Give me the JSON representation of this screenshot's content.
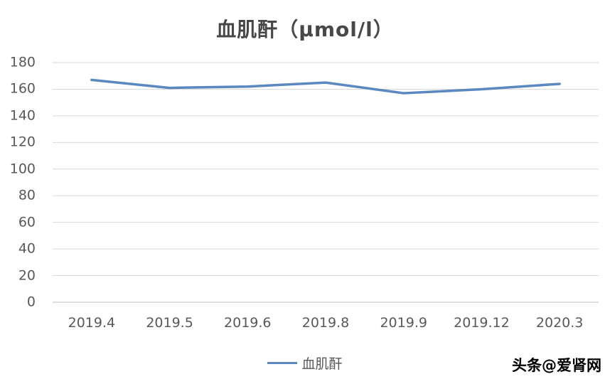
{
  "chart_data": {
    "type": "line",
    "title": "血肌酐（μmol/l）",
    "categories": [
      "2019.4",
      "2019.5",
      "2019.6",
      "2019.8",
      "2019.9",
      "2019.12",
      "2020.3"
    ],
    "series": [
      {
        "name": "血肌酐",
        "values": [
          167,
          161,
          162,
          165,
          157,
          160,
          164
        ]
      }
    ],
    "xlabel": "",
    "ylabel": "",
    "ylim": [
      0,
      180
    ],
    "ytick_step": 20,
    "grid": true,
    "legend_position": "bottom",
    "line_color": "#5b88be",
    "grid_color": "#d9d9d9",
    "axis_color": "#bfbfbf",
    "text_color": "#595959"
  },
  "watermark": {
    "text": "头条@爱肾网"
  }
}
